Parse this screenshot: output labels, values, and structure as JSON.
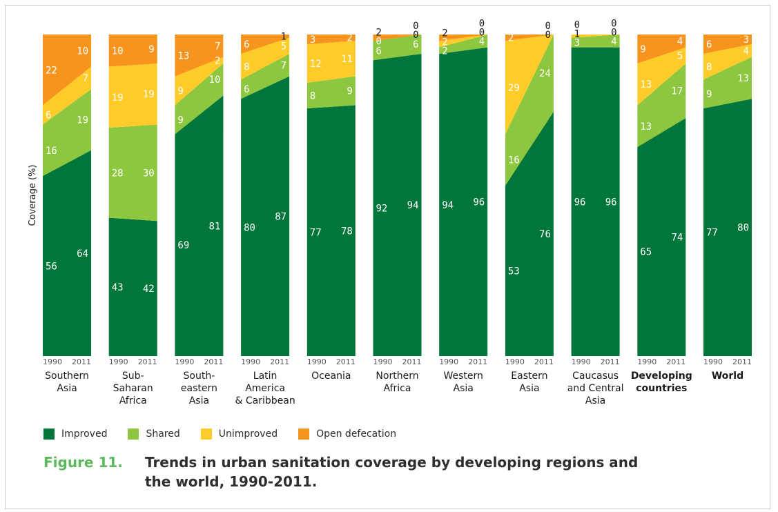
{
  "colors": {
    "improved": "#00763a",
    "shared": "#8dc63f",
    "unimproved": "#ffcb29",
    "open_defecation": "#f7941d",
    "caption_number": "#5cb85c"
  },
  "legend": {
    "improved": "Improved",
    "shared": "Shared",
    "unimproved": "Unimproved",
    "open_defecation": "Open defecation"
  },
  "caption": {
    "number": "Figure 11.",
    "text": "Trends in urban sanitation coverage by developing regions and the world, 1990-2011."
  },
  "chart_data": {
    "type": "bar",
    "subtype": "stacked-100-percent-slope",
    "ylabel": "Coverage (%)",
    "ylim": [
      0,
      100
    ],
    "grid": false,
    "legend_position": "bottom-left",
    "years": [
      "1990",
      "2011"
    ],
    "series_order": [
      "Improved",
      "Shared",
      "Unimproved",
      "Open defecation"
    ],
    "categories": [
      {
        "name": [
          "Southern",
          "Asia"
        ],
        "bold": false,
        "y1990": [
          56,
          16,
          6,
          22
        ],
        "y2011": [
          64,
          19,
          7,
          10
        ]
      },
      {
        "name": [
          "Sub-",
          "Saharan",
          "Africa"
        ],
        "bold": false,
        "y1990": [
          43,
          28,
          19,
          10
        ],
        "y2011": [
          42,
          30,
          19,
          9
        ]
      },
      {
        "name": [
          "South-",
          "eastern",
          "Asia"
        ],
        "bold": false,
        "y1990": [
          69,
          9,
          9,
          13
        ],
        "y2011": [
          81,
          10,
          2,
          7
        ]
      },
      {
        "name": [
          "Latin",
          "America",
          "& Caribbean"
        ],
        "bold": false,
        "y1990": [
          80,
          6,
          8,
          6
        ],
        "y2011": [
          87,
          7,
          5,
          1
        ]
      },
      {
        "name": [
          "Oceania"
        ],
        "bold": false,
        "y1990": [
          77,
          8,
          12,
          3
        ],
        "y2011": [
          78,
          9,
          11,
          2
        ]
      },
      {
        "name": [
          "Northern",
          "Africa"
        ],
        "bold": false,
        "y1990": [
          92,
          6,
          0,
          2
        ],
        "y2011": [
          94,
          6,
          0,
          0
        ]
      },
      {
        "name": [
          "Western",
          "Asia"
        ],
        "bold": false,
        "y1990": [
          94,
          2,
          2,
          2
        ],
        "y2011": [
          96,
          4,
          0,
          0
        ]
      },
      {
        "name": [
          "Eastern",
          "Asia"
        ],
        "bold": false,
        "y1990": [
          53,
          16,
          29,
          2
        ],
        "y2011": [
          76,
          24,
          0,
          0
        ]
      },
      {
        "name": [
          "Caucasus",
          "and Central",
          "Asia"
        ],
        "bold": false,
        "y1990": [
          96,
          3,
          1,
          0
        ],
        "y2011": [
          96,
          4,
          0,
          0
        ]
      },
      {
        "name": [
          "Developing",
          "countries"
        ],
        "bold": true,
        "y1990": [
          65,
          13,
          13,
          9
        ],
        "y2011": [
          74,
          17,
          5,
          4
        ]
      },
      {
        "name": [
          "World"
        ],
        "bold": true,
        "y1990": [
          77,
          9,
          8,
          6
        ],
        "y2011": [
          80,
          13,
          4,
          3
        ]
      }
    ]
  }
}
